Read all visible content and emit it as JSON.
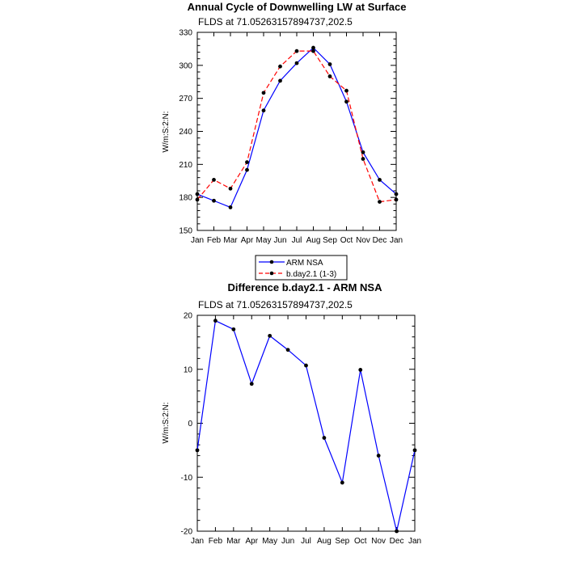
{
  "chart_data": [
    {
      "type": "line",
      "title": "Annual Cycle of Downwelling LW at Surface",
      "subtitle": "FLDS at 71.05263157894737,202.5",
      "ylabel": "W/m:S:2:N:",
      "categories": [
        "Jan",
        "Feb",
        "Mar",
        "Apr",
        "May",
        "Jun",
        "Jul",
        "Aug",
        "Sep",
        "Oct",
        "Nov",
        "Dec",
        "Jan"
      ],
      "ylim": [
        150,
        330
      ],
      "yticks": [
        "150",
        "180",
        "210",
        "240",
        "270",
        "300",
        "330"
      ],
      "series": [
        {
          "name": "ARM NSA",
          "color": "#0000ff",
          "dash": "solid",
          "values": [
            183,
            177,
            171,
            205,
            259,
            286,
            302,
            316,
            301,
            267,
            221,
            196,
            183
          ]
        },
        {
          "name": "b.day2.1 (1-3)",
          "color": "#ff0000",
          "dash": "dashed",
          "values": [
            178,
            196,
            188,
            212,
            275,
            299,
            313,
            313,
            290,
            277,
            215,
            176,
            178
          ]
        }
      ],
      "legend": "below"
    },
    {
      "type": "line",
      "title": "Difference b.day2.1 - ARM NSA",
      "subtitle": "FLDS at 71.05263157894737,202.5",
      "ylabel": "W/m:S:2:N:",
      "categories": [
        "Jan",
        "Feb",
        "Mar",
        "Apr",
        "May",
        "Jun",
        "Jul",
        "Aug",
        "Sep",
        "Oct",
        "Nov",
        "Dec",
        "Jan"
      ],
      "ylim": [
        -20,
        20
      ],
      "yticks": [
        "-20",
        "-10",
        "0",
        "10",
        "20"
      ],
      "series": [
        {
          "color": "#0000ff",
          "dash": "solid",
          "values": [
            -5,
            19,
            17.4,
            7.3,
            16.2,
            13.6,
            10.7,
            -2.7,
            -11,
            9.9,
            -6,
            -20,
            -5
          ]
        }
      ]
    }
  ]
}
